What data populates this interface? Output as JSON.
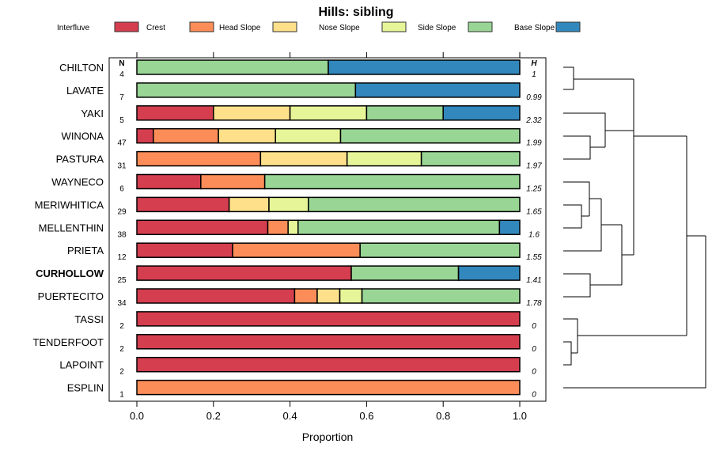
{
  "chart_data": {
    "type": "bar",
    "stacked": true,
    "orientation": "horizontal",
    "title": "Hills: sibling",
    "xlabel": "Proportion",
    "ylabel": "",
    "xlim": [
      0,
      1
    ],
    "x_ticks": [
      "0.0",
      "0.2",
      "0.4",
      "0.6",
      "0.8",
      "1.0"
    ],
    "n_header": "N",
    "h_header": "H",
    "legend_position": "top",
    "highlighted_category": "CURHOLLOW",
    "categories": [
      "CHILTON",
      "LAVATE",
      "YAKI",
      "WINONA",
      "PASTURA",
      "WAYNECO",
      "MERIWHITICA",
      "MELLENTHIN",
      "PRIETA",
      "CURHOLLOW",
      "PUERTECITO",
      "TASSI",
      "TENDERFOOT",
      "LAPOINT",
      "ESPLIN"
    ],
    "n": [
      "4",
      "7",
      "5",
      "47",
      "31",
      "6",
      "29",
      "38",
      "12",
      "25",
      "34",
      "2",
      "2",
      "2",
      "1"
    ],
    "h": [
      "1",
      "0.99",
      "2.32",
      "1.99",
      "1.97",
      "1.25",
      "1.65",
      "1.6",
      "1.55",
      "1.41",
      "1.78",
      "0",
      "0",
      "0",
      "0"
    ],
    "series": [
      {
        "name": "Interfluve",
        "color": "#d53e4f",
        "values": [
          0,
          0,
          0.2,
          0.043,
          0,
          0.167,
          0.241,
          0.342,
          0.25,
          0.56,
          0.412,
          1,
          1,
          1,
          0
        ]
      },
      {
        "name": "Crest",
        "color": "#fc8d59",
        "values": [
          0,
          0,
          0,
          0.17,
          0.323,
          0.167,
          0,
          0.053,
          0.333,
          0,
          0.059,
          0,
          0,
          0,
          1
        ]
      },
      {
        "name": "Head Slope",
        "color": "#fee08b",
        "values": [
          0,
          0,
          0.2,
          0.149,
          0.226,
          0,
          0.104,
          0,
          0,
          0,
          0.059,
          0,
          0,
          0,
          0
        ]
      },
      {
        "name": "Nose Slope",
        "color": "#e6f598",
        "values": [
          0,
          0,
          0.2,
          0.17,
          0.194,
          0,
          0.103,
          0.026,
          0,
          0,
          0.058,
          0,
          0,
          0,
          0
        ]
      },
      {
        "name": "Side Slope",
        "color": "#99d594",
        "values": [
          0.5,
          0.571,
          0.2,
          0.468,
          0.257,
          0.666,
          0.552,
          0.526,
          0.417,
          0.28,
          0.412,
          0,
          0,
          0,
          0
        ]
      },
      {
        "name": "Base Slope",
        "color": "#3288bd",
        "values": [
          0.5,
          0.429,
          0.2,
          0,
          0,
          0,
          0,
          0.053,
          0,
          0.16,
          0,
          0,
          0,
          0,
          0
        ]
      }
    ]
  }
}
